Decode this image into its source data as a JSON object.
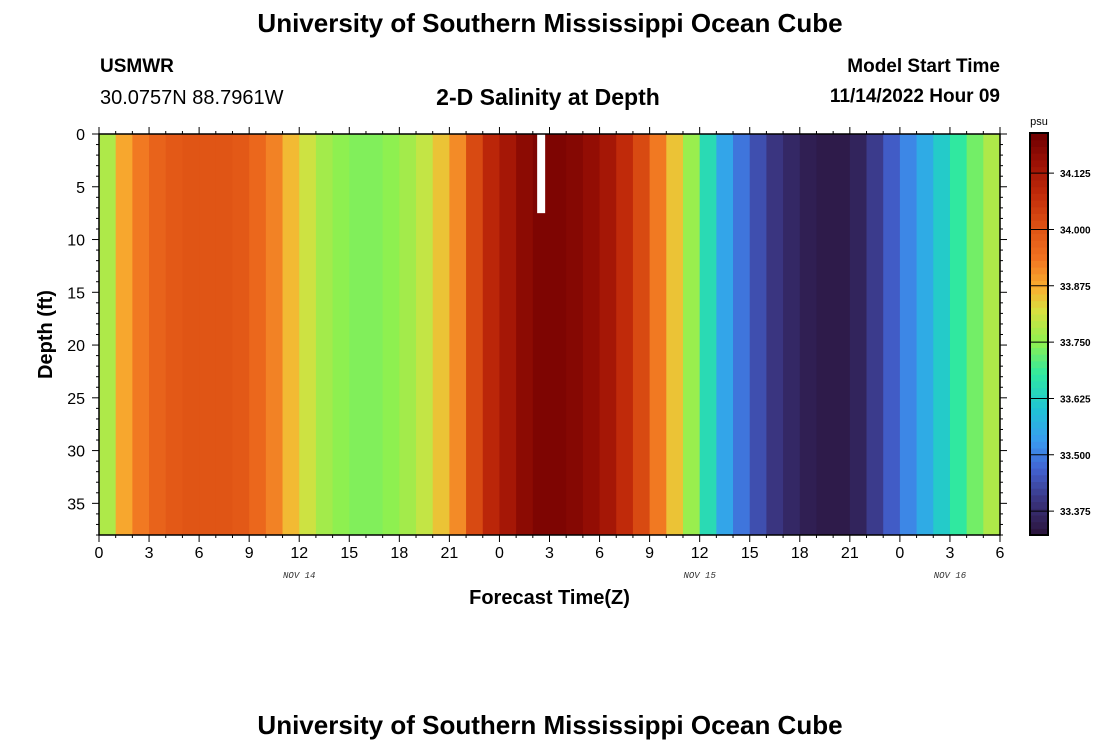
{
  "header": {
    "title": "University of Southern Mississippi Ocean Cube",
    "station": "USMWR",
    "coordinates": "30.0757N  88.7961W",
    "plot_title": "2-D Salinity at Depth",
    "model_start_label": "Model Start Time",
    "model_start_value": "11/14/2022 Hour 09"
  },
  "footer": {
    "title": "University of Southern Mississippi Ocean Cube"
  },
  "chart_data": {
    "type": "heatmap",
    "title": "2-D Salinity at Depth",
    "xlabel": "Forecast Time(Z)",
    "ylabel": "Depth (ft)",
    "xlim": [
      0,
      54
    ],
    "ylim": [
      0,
      38
    ],
    "y_inverted": true,
    "x_ticks": [
      0,
      3,
      6,
      9,
      12,
      15,
      18,
      21,
      24,
      27,
      30,
      33,
      36,
      39,
      42,
      45,
      48,
      51,
      54
    ],
    "x_tick_labels": [
      "0",
      "3",
      "6",
      "9",
      "12",
      "15",
      "18",
      "21",
      "0",
      "3",
      "6",
      "9",
      "12",
      "15",
      "18",
      "21",
      "0",
      "3",
      "6"
    ],
    "date_labels": [
      {
        "hour": 12,
        "text": "NOV 14"
      },
      {
        "hour": 36,
        "text": "NOV 15"
      },
      {
        "hour": 51,
        "text": "NOV 16"
      }
    ],
    "y_ticks": [
      0,
      5,
      10,
      15,
      20,
      25,
      30,
      35
    ],
    "y_tick_labels": [
      "0",
      "5",
      "10",
      "15",
      "20",
      "25",
      "30",
      "35"
    ],
    "colorbar": {
      "unit": "psu",
      "range": [
        33.322,
        34.214
      ],
      "ticks": [
        34.125,
        34.0,
        33.875,
        33.75,
        33.625,
        33.5,
        33.375
      ],
      "tick_labels": [
        "34.125",
        "34.000",
        "33.875",
        "33.750",
        "33.625",
        "33.500",
        "33.375"
      ],
      "stops": [
        [
          33.32,
          "#2a1238"
        ],
        [
          33.4,
          "#3a3580"
        ],
        [
          33.47,
          "#4262d2"
        ],
        [
          33.53,
          "#3a9af0"
        ],
        [
          33.6,
          "#20c2d6"
        ],
        [
          33.68,
          "#30e8a0"
        ],
        [
          33.75,
          "#8ef050"
        ],
        [
          33.82,
          "#d8e040"
        ],
        [
          33.87,
          "#f8b030"
        ],
        [
          33.94,
          "#f07020"
        ],
        [
          34.0,
          "#e05515"
        ],
        [
          34.08,
          "#c02a0a"
        ],
        [
          34.15,
          "#9a1005"
        ],
        [
          34.21,
          "#700000"
        ]
      ]
    },
    "hourly_salinity_uniform_with_depth": [
      33.78,
      33.88,
      33.93,
      33.97,
      33.99,
      34.0,
      34.0,
      34.0,
      33.99,
      33.96,
      33.92,
      33.86,
      33.81,
      33.77,
      33.75,
      33.74,
      33.74,
      33.75,
      33.77,
      33.8,
      33.85,
      33.91,
      34.02,
      34.09,
      34.13,
      34.17,
      34.19,
      34.19,
      34.18,
      34.16,
      34.13,
      34.08,
      34.02,
      33.93,
      33.85,
      33.76,
      33.65,
      33.55,
      33.49,
      33.44,
      33.4,
      33.37,
      33.35,
      33.34,
      33.34,
      33.36,
      33.41,
      33.46,
      33.51,
      33.56,
      33.62,
      33.68,
      33.73,
      33.78
    ],
    "missing_data": {
      "hour": 26.5,
      "depth_range": [
        0,
        7.5
      ]
    }
  }
}
